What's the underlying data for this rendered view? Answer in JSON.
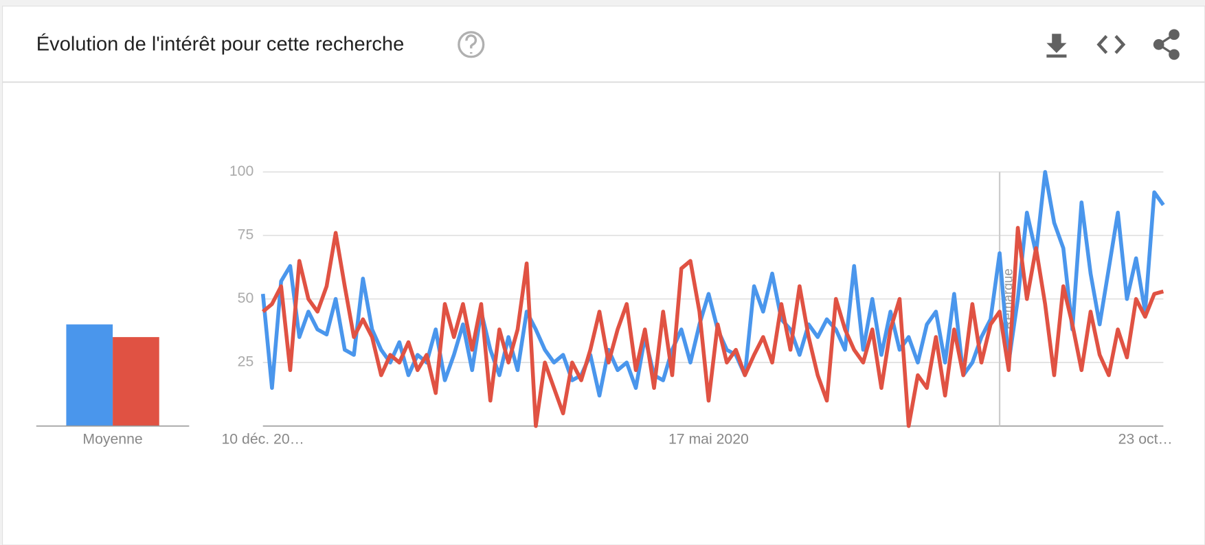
{
  "header": {
    "title": "Évolution de l'intérêt pour cette recherche"
  },
  "chart_data": [
    {
      "type": "bar",
      "categories": [
        "Moyenne"
      ],
      "ylim": [
        0,
        100
      ],
      "series": [
        {
          "color": "#4a96ec",
          "values": [
            40
          ]
        },
        {
          "color": "#e05243",
          "values": [
            35
          ]
        }
      ]
    },
    {
      "type": "line",
      "ylim": [
        0,
        100
      ],
      "yticks": [
        25,
        50,
        75,
        100
      ],
      "grid": true,
      "x": [
        "10 déc. 20…",
        null,
        null,
        null,
        null,
        null,
        null,
        null,
        null,
        null,
        null,
        null,
        null,
        null,
        null,
        null,
        null,
        null,
        null,
        null,
        null,
        null,
        null,
        null,
        null,
        null,
        null,
        null,
        null,
        null,
        null,
        null,
        null,
        null,
        null,
        null,
        null,
        null,
        null,
        null,
        null,
        null,
        null,
        null,
        null,
        null,
        null,
        null,
        null,
        "17 mai 2020",
        null,
        null,
        null,
        null,
        null,
        null,
        null,
        null,
        null,
        null,
        null,
        null,
        null,
        null,
        null,
        null,
        null,
        null,
        null,
        null,
        null,
        null,
        null,
        null,
        null,
        null,
        null,
        null,
        null,
        null,
        null,
        null,
        null,
        null,
        null,
        null,
        null,
        null,
        null,
        null,
        null,
        null,
        null,
        null,
        null,
        null,
        null,
        null,
        null,
        "23 oct…"
      ],
      "annotations": [
        {
          "text": "Remarque",
          "index": 81
        }
      ],
      "series": [
        {
          "color": "#4a96ec",
          "values": [
            52,
            15,
            57,
            63,
            35,
            45,
            38,
            36,
            50,
            30,
            28,
            58,
            38,
            30,
            25,
            33,
            20,
            28,
            25,
            38,
            18,
            28,
            40,
            22,
            45,
            30,
            20,
            35,
            22,
            45,
            38,
            30,
            25,
            28,
            18,
            20,
            28,
            12,
            30,
            22,
            25,
            15,
            35,
            20,
            18,
            30,
            38,
            25,
            40,
            52,
            38,
            30,
            28,
            20,
            55,
            45,
            60,
            42,
            38,
            28,
            40,
            35,
            42,
            38,
            30,
            63,
            30,
            50,
            28,
            45,
            30,
            35,
            25,
            40,
            45,
            25,
            52,
            20,
            25,
            35,
            42,
            68,
            25,
            50,
            84,
            68,
            100,
            80,
            70,
            38,
            88,
            60,
            40,
            62,
            84,
            50,
            66,
            45,
            92,
            87
          ]
        },
        {
          "color": "#e05243",
          "values": [
            45,
            48,
            55,
            22,
            65,
            50,
            45,
            55,
            76,
            55,
            35,
            42,
            35,
            20,
            28,
            25,
            33,
            22,
            28,
            13,
            48,
            35,
            48,
            30,
            48,
            10,
            38,
            25,
            38,
            64,
            0,
            25,
            15,
            5,
            25,
            18,
            30,
            45,
            25,
            38,
            48,
            22,
            38,
            15,
            45,
            20,
            62,
            65,
            45,
            10,
            40,
            25,
            30,
            20,
            28,
            35,
            25,
            48,
            30,
            55,
            35,
            20,
            10,
            50,
            38,
            30,
            25,
            38,
            15,
            38,
            50,
            0,
            20,
            15,
            35,
            12,
            38,
            20,
            48,
            25,
            40,
            45,
            22,
            78,
            50,
            70,
            48,
            20,
            55,
            40,
            22,
            45,
            28,
            20,
            38,
            27,
            50,
            43,
            52,
            53
          ]
        }
      ]
    }
  ]
}
